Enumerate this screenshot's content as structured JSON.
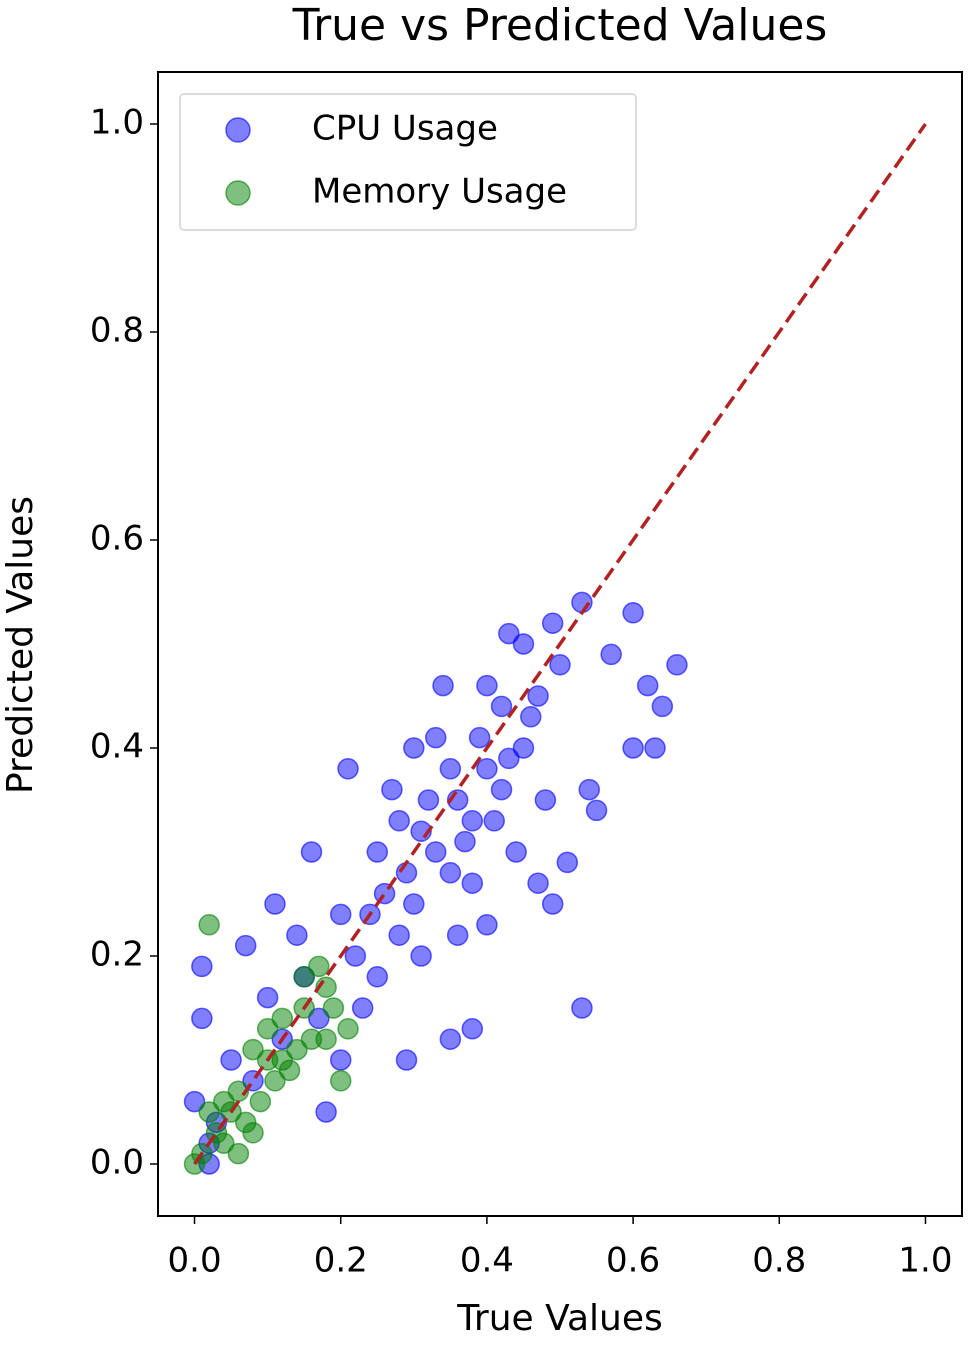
{
  "chart_data": {
    "type": "scatter",
    "title": "True vs Predicted Values",
    "x_label": "True Values",
    "y_label": "Predicted Values",
    "xlim": [
      -0.05,
      1.05
    ],
    "ylim": [
      -0.05,
      1.05
    ],
    "xticks": [
      {
        "value": 0,
        "label": "0.0"
      },
      0.2,
      0.4,
      0.6,
      0.8,
      {
        "value": 1,
        "label": "1.0"
      }
    ],
    "yticks": [
      {
        "value": 0,
        "label": "0.0"
      },
      0.2,
      0.4,
      0.6,
      0.8,
      {
        "value": 1,
        "label": "1.0"
      }
    ],
    "legend": "upper left",
    "reference_line": {
      "x": [
        0,
        1
      ],
      "values": [
        0,
        1
      ],
      "color": "#b22222"
    },
    "series": [
      {
        "name": "CPU Usage",
        "color": "#0000ff",
        "x": [
          0.53,
          0.66,
          0.62,
          0.64,
          0.6,
          0.53,
          0.45,
          0.43,
          0.49,
          0.57,
          0.6,
          0.63,
          0.55,
          0.54,
          0.51,
          0.49,
          0.4,
          0.38,
          0.35,
          0.29,
          0.21,
          0.16,
          0.11,
          0.07,
          0.01,
          0.18,
          0.34,
          0.4,
          0.42,
          0.3,
          0.35,
          0.25,
          0.28,
          0.32,
          0.38,
          0.4,
          0.42,
          0.45,
          0.35,
          0.3,
          0.28,
          0.33,
          0.37,
          0.44,
          0.47,
          0.25,
          0.22,
          0.2,
          0.26,
          0.31,
          0.36,
          0.38,
          0.41,
          0.23,
          0.15,
          0.12,
          0.1,
          0.08,
          0.05,
          0.03,
          0.02,
          0.0,
          0.01,
          0.14,
          0.17,
          0.2,
          0.27,
          0.33,
          0.46,
          0.48,
          0.39,
          0.29,
          0.24,
          0.36,
          0.43,
          0.31,
          0.47,
          0.5,
          0.02
        ],
        "values": [
          0.15,
          0.48,
          0.46,
          0.44,
          0.53,
          0.54,
          0.5,
          0.51,
          0.52,
          0.49,
          0.4,
          0.4,
          0.34,
          0.36,
          0.29,
          0.25,
          0.23,
          0.13,
          0.12,
          0.1,
          0.38,
          0.3,
          0.25,
          0.21,
          0.19,
          0.05,
          0.46,
          0.46,
          0.44,
          0.4,
          0.38,
          0.3,
          0.33,
          0.35,
          0.33,
          0.38,
          0.36,
          0.4,
          0.28,
          0.25,
          0.22,
          0.3,
          0.31,
          0.3,
          0.27,
          0.18,
          0.2,
          0.24,
          0.26,
          0.2,
          0.22,
          0.27,
          0.33,
          0.15,
          0.18,
          0.12,
          0.16,
          0.08,
          0.1,
          0.04,
          0.02,
          0.06,
          0.14,
          0.22,
          0.14,
          0.1,
          0.36,
          0.41,
          0.43,
          0.35,
          0.41,
          0.28,
          0.24,
          0.35,
          0.39,
          0.32,
          0.45,
          0.48,
          0.0
        ]
      },
      {
        "name": "Memory Usage",
        "color": "#008000",
        "x": [
          0.02,
          0.2,
          0.17,
          0.18,
          0.15,
          0.12,
          0.14,
          0.1,
          0.08,
          0.06,
          0.05,
          0.03,
          0.01,
          0.0,
          0.04,
          0.07,
          0.09,
          0.11,
          0.13,
          0.16,
          0.19,
          0.21,
          0.02,
          0.04,
          0.06,
          0.1,
          0.12,
          0.15,
          0.18,
          0.08
        ],
        "values": [
          0.23,
          0.08,
          0.19,
          0.17,
          0.15,
          0.14,
          0.11,
          0.1,
          0.11,
          0.07,
          0.05,
          0.03,
          0.01,
          0.0,
          0.06,
          0.04,
          0.06,
          0.08,
          0.09,
          0.12,
          0.15,
          0.13,
          0.05,
          0.02,
          0.01,
          0.13,
          0.1,
          0.18,
          0.12,
          0.03
        ]
      }
    ]
  }
}
